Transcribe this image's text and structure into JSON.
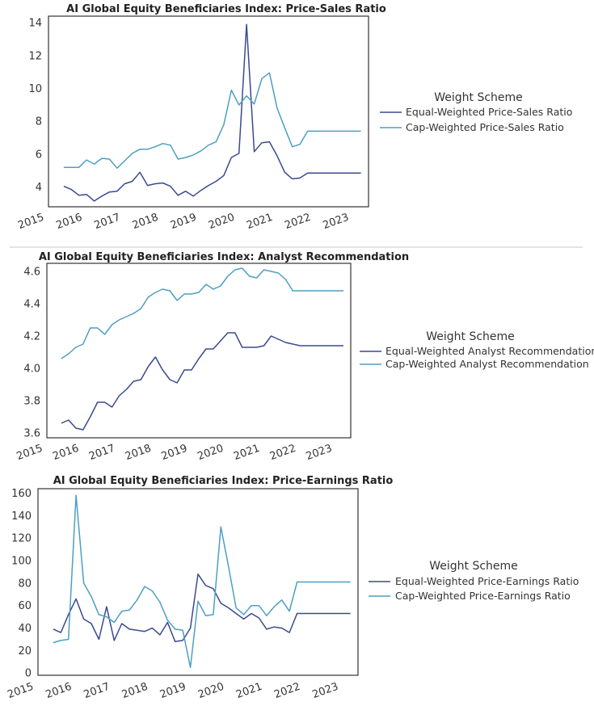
{
  "colors": {
    "equal": "#3a4a8f",
    "cap": "#4d9fc2"
  },
  "chart_data": [
    {
      "type": "line",
      "title": "AI Global Equity Beneficiaries Index: Price-Sales Ratio",
      "xlabel": "",
      "ylabel": "",
      "xlim": [
        2015.1,
        2023.5
      ],
      "ylim": [
        2.8,
        14.4
      ],
      "x_ticks": [
        "2015",
        "2016",
        "2017",
        "2018",
        "2019",
        "2020",
        "2021",
        "2022",
        "2023"
      ],
      "y_ticks": [
        4,
        6,
        8,
        10,
        12,
        14
      ],
      "legend_title": "Weight Scheme",
      "legend_position": "right",
      "series": [
        {
          "name": "Equal-Weighted Price-Sales Ratio",
          "color": "equal",
          "x": [
            2015.5,
            2015.7,
            2015.9,
            2016.1,
            2016.3,
            2016.5,
            2016.7,
            2016.9,
            2017.1,
            2017.3,
            2017.5,
            2017.7,
            2017.9,
            2018.1,
            2018.3,
            2018.5,
            2018.7,
            2018.9,
            2019.1,
            2019.3,
            2019.5,
            2019.7,
            2019.9,
            2020.1,
            2020.3,
            2020.5,
            2020.7,
            2020.9,
            2021.1,
            2021.3,
            2021.5,
            2021.7,
            2021.9,
            2022.1,
            2022.3,
            2022.5,
            2022.7,
            2022.9,
            2023.1,
            2023.3
          ],
          "values": [
            4.05,
            3.85,
            3.5,
            3.55,
            3.15,
            3.45,
            3.7,
            3.75,
            4.2,
            4.35,
            4.9,
            4.1,
            4.2,
            4.25,
            4.05,
            3.5,
            3.75,
            3.45,
            3.8,
            4.1,
            4.35,
            4.7,
            5.8,
            6.05,
            13.9,
            6.15,
            6.7,
            6.75,
            5.9,
            4.9,
            4.5,
            4.55,
            4.85,
            4.85,
            4.85,
            4.85,
            4.85,
            4.85,
            4.85,
            4.85
          ]
        },
        {
          "name": "Cap-Weighted Price-Sales Ratio",
          "color": "cap",
          "x": [
            2015.5,
            2015.7,
            2015.9,
            2016.1,
            2016.3,
            2016.5,
            2016.7,
            2016.9,
            2017.1,
            2017.3,
            2017.5,
            2017.7,
            2017.9,
            2018.1,
            2018.3,
            2018.5,
            2018.7,
            2018.9,
            2019.1,
            2019.3,
            2019.5,
            2019.7,
            2019.9,
            2020.1,
            2020.3,
            2020.5,
            2020.7,
            2020.9,
            2021.1,
            2021.3,
            2021.5,
            2021.7,
            2021.9,
            2022.1,
            2022.3,
            2022.5,
            2022.7,
            2022.9,
            2023.1,
            2023.3
          ],
          "values": [
            5.2,
            5.2,
            5.2,
            5.65,
            5.4,
            5.75,
            5.7,
            5.15,
            5.6,
            6.05,
            6.3,
            6.3,
            6.45,
            6.65,
            6.55,
            5.7,
            5.8,
            5.95,
            6.2,
            6.55,
            6.75,
            7.8,
            9.9,
            9.0,
            9.55,
            9.05,
            10.6,
            10.95,
            8.8,
            7.6,
            6.45,
            6.6,
            7.4,
            7.4,
            7.4,
            7.4,
            7.4,
            7.4,
            7.4,
            7.4
          ]
        }
      ]
    },
    {
      "type": "line",
      "title": "AI Global Equity Beneficiaries Index: Analyst Recommendation",
      "xlabel": "",
      "ylabel": "",
      "xlim": [
        2015.1,
        2023.5
      ],
      "ylim": [
        3.57,
        4.65
      ],
      "x_ticks": [
        "2015",
        "2016",
        "2017",
        "2018",
        "2019",
        "2020",
        "2021",
        "2022",
        "2023"
      ],
      "y_ticks": [
        3.6,
        3.8,
        4.0,
        4.2,
        4.4,
        4.6
      ],
      "legend_title": "Weight Scheme",
      "legend_position": "right",
      "series": [
        {
          "name": "Equal-Weighted Analyst Recommendation",
          "color": "equal",
          "x": [
            2015.5,
            2015.7,
            2015.9,
            2016.1,
            2016.3,
            2016.5,
            2016.7,
            2016.9,
            2017.1,
            2017.3,
            2017.5,
            2017.7,
            2017.9,
            2018.1,
            2018.3,
            2018.5,
            2018.7,
            2018.9,
            2019.1,
            2019.3,
            2019.5,
            2019.7,
            2019.9,
            2020.1,
            2020.3,
            2020.5,
            2020.7,
            2020.9,
            2021.1,
            2021.3,
            2021.5,
            2021.7,
            2021.9,
            2022.1,
            2022.3,
            2022.5,
            2022.7,
            2022.9,
            2023.1,
            2023.3
          ],
          "values": [
            3.66,
            3.68,
            3.63,
            3.62,
            3.7,
            3.79,
            3.79,
            3.76,
            3.83,
            3.87,
            3.92,
            3.93,
            4.01,
            4.07,
            3.99,
            3.93,
            3.91,
            3.99,
            3.99,
            4.06,
            4.12,
            4.12,
            4.17,
            4.22,
            4.22,
            4.13,
            4.13,
            4.13,
            4.14,
            4.2,
            4.18,
            4.16,
            4.15,
            4.14,
            4.14,
            4.14,
            4.14,
            4.14,
            4.14,
            4.14
          ]
        },
        {
          "name": "Cap-Weighted Analyst Recommendation",
          "color": "cap",
          "x": [
            2015.5,
            2015.7,
            2015.9,
            2016.1,
            2016.3,
            2016.5,
            2016.7,
            2016.9,
            2017.1,
            2017.3,
            2017.5,
            2017.7,
            2017.9,
            2018.1,
            2018.3,
            2018.5,
            2018.7,
            2018.9,
            2019.1,
            2019.3,
            2019.5,
            2019.7,
            2019.9,
            2020.1,
            2020.3,
            2020.5,
            2020.7,
            2020.9,
            2021.1,
            2021.3,
            2021.5,
            2021.7,
            2021.9,
            2022.1,
            2022.3,
            2022.5,
            2022.7,
            2022.9,
            2023.1,
            2023.3
          ],
          "values": [
            4.06,
            4.09,
            4.13,
            4.15,
            4.25,
            4.25,
            4.21,
            4.27,
            4.3,
            4.32,
            4.34,
            4.37,
            4.44,
            4.47,
            4.49,
            4.48,
            4.42,
            4.46,
            4.46,
            4.47,
            4.52,
            4.49,
            4.51,
            4.57,
            4.61,
            4.62,
            4.57,
            4.56,
            4.61,
            4.6,
            4.59,
            4.55,
            4.48,
            4.48,
            4.48,
            4.48,
            4.48,
            4.48,
            4.48,
            4.48
          ]
        }
      ]
    },
    {
      "type": "line",
      "title": "AI Global Equity Beneficiaries Index: Price-Earnings Ratio",
      "xlabel": "",
      "ylabel": "",
      "xlim": [
        2015.1,
        2023.5
      ],
      "ylim": [
        -2,
        164
      ],
      "x_ticks": [
        "2015",
        "2016",
        "2017",
        "2018",
        "2019",
        "2020",
        "2021",
        "2022",
        "2023"
      ],
      "y_ticks": [
        0,
        20,
        40,
        60,
        80,
        100,
        120,
        140,
        160
      ],
      "legend_title": "Weight Scheme",
      "legend_position": "right",
      "series": [
        {
          "name": "Equal-Weighted Price-Earnings Ratio",
          "color": "equal",
          "x": [
            2015.5,
            2015.7,
            2015.9,
            2016.1,
            2016.3,
            2016.5,
            2016.7,
            2016.9,
            2017.1,
            2017.3,
            2017.5,
            2017.7,
            2017.9,
            2018.1,
            2018.3,
            2018.5,
            2018.7,
            2018.9,
            2019.1,
            2019.3,
            2019.5,
            2019.7,
            2019.9,
            2020.1,
            2020.3,
            2020.5,
            2020.7,
            2020.9,
            2021.1,
            2021.3,
            2021.5,
            2021.7,
            2021.9,
            2022.1,
            2022.3,
            2022.5,
            2022.7,
            2022.9,
            2023.1,
            2023.3
          ],
          "values": [
            39,
            36,
            52,
            66,
            48,
            44,
            30,
            59,
            29,
            44,
            39,
            38,
            37,
            40,
            34,
            45,
            28,
            29,
            40,
            88,
            78,
            75,
            62,
            58,
            53,
            48,
            53,
            49,
            39,
            41,
            40,
            36,
            53,
            53,
            53,
            53,
            53,
            53,
            53,
            53
          ]
        },
        {
          "name": "Cap-Weighted Price-Earnings Ratio",
          "color": "cap",
          "x": [
            2015.5,
            2015.7,
            2015.9,
            2016.1,
            2016.3,
            2016.5,
            2016.7,
            2016.9,
            2017.1,
            2017.3,
            2017.5,
            2017.7,
            2017.9,
            2018.1,
            2018.3,
            2018.5,
            2018.7,
            2018.9,
            2019.1,
            2019.3,
            2019.5,
            2019.7,
            2019.9,
            2020.1,
            2020.3,
            2020.5,
            2020.7,
            2020.9,
            2021.1,
            2021.3,
            2021.5,
            2021.7,
            2021.9,
            2022.1,
            2022.3,
            2022.5,
            2022.7,
            2022.9,
            2023.1,
            2023.3
          ],
          "values": [
            27,
            29,
            30,
            158,
            80,
            68,
            52,
            50,
            45,
            55,
            56,
            65,
            77,
            73,
            63,
            47,
            39,
            38,
            5,
            64,
            51,
            52,
            130,
            95,
            58,
            52,
            60,
            60,
            51,
            59,
            65,
            55,
            81,
            81,
            81,
            81,
            81,
            81,
            81,
            81
          ]
        }
      ]
    }
  ]
}
